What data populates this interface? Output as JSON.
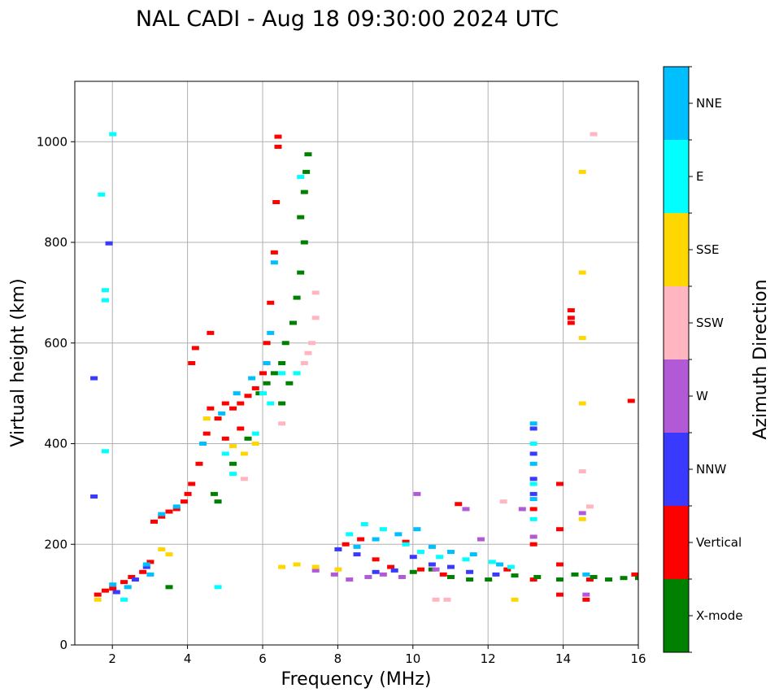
{
  "chart_data": {
    "type": "scatter",
    "title": "NAL CADI - Aug 18 09:30:00 2024 UTC",
    "xlabel": "Frequency (MHz)",
    "ylabel": "Virtual height (km)",
    "xlim": [
      1,
      16
    ],
    "ylim": [
      0,
      1120
    ],
    "x_ticks": [
      "2",
      "4",
      "6",
      "8",
      "10",
      "12",
      "14",
      "16"
    ],
    "x_tick_values": [
      2,
      4,
      6,
      8,
      10,
      12,
      14,
      16
    ],
    "y_ticks": [
      "0",
      "200",
      "400",
      "600",
      "800",
      "1000"
    ],
    "y_tick_values": [
      0,
      200,
      400,
      600,
      800,
      1000
    ],
    "grid": true,
    "colorbar": {
      "label": "Azimuth Direction",
      "categories": [
        {
          "name": "X-mode",
          "color": "#008000"
        },
        {
          "name": "Vertical",
          "color": "#ff0000"
        },
        {
          "name": "NNW",
          "color": "#3a3aff"
        },
        {
          "name": "W",
          "color": "#b25ad6"
        },
        {
          "name": "SSW",
          "color": "#ffb6c1"
        },
        {
          "name": "SSE",
          "color": "#ffd700"
        },
        {
          "name": "E",
          "color": "#00ffff"
        },
        {
          "name": "NNE",
          "color": "#00bfff"
        }
      ]
    },
    "series": [
      {
        "name": "Vertical",
        "points": [
          [
            1.6,
            100
          ],
          [
            1.8,
            108
          ],
          [
            2.0,
            112
          ],
          [
            2.3,
            125
          ],
          [
            2.5,
            135
          ],
          [
            2.8,
            145
          ],
          [
            3.0,
            165
          ],
          [
            3.1,
            245
          ],
          [
            3.3,
            255
          ],
          [
            3.5,
            265
          ],
          [
            3.7,
            270
          ],
          [
            3.9,
            285
          ],
          [
            4.0,
            300
          ],
          [
            4.1,
            320
          ],
          [
            4.3,
            360
          ],
          [
            4.5,
            420
          ],
          [
            4.6,
            470
          ],
          [
            4.8,
            450
          ],
          [
            5.0,
            480
          ],
          [
            5.2,
            470
          ],
          [
            5.4,
            480
          ],
          [
            5.6,
            495
          ],
          [
            5.8,
            510
          ],
          [
            6.0,
            540
          ],
          [
            6.1,
            600
          ],
          [
            6.2,
            680
          ],
          [
            6.3,
            780
          ],
          [
            6.35,
            880
          ],
          [
            6.4,
            1010
          ],
          [
            6.4,
            990
          ],
          [
            4.1,
            560
          ],
          [
            4.2,
            590
          ],
          [
            4.6,
            620
          ],
          [
            5.0,
            410
          ],
          [
            5.4,
            430
          ],
          [
            8.2,
            200
          ],
          [
            8.6,
            210
          ],
          [
            9.0,
            170
          ],
          [
            9.4,
            155
          ],
          [
            9.8,
            205
          ],
          [
            10.2,
            150
          ],
          [
            10.8,
            140
          ],
          [
            11.2,
            280
          ],
          [
            12.5,
            150
          ],
          [
            13.2,
            130
          ],
          [
            13.2,
            200
          ],
          [
            13.2,
            270
          ],
          [
            13.9,
            100
          ],
          [
            13.9,
            160
          ],
          [
            13.9,
            230
          ],
          [
            13.9,
            320
          ],
          [
            14.2,
            650
          ],
          [
            14.2,
            665
          ],
          [
            14.2,
            640
          ],
          [
            15.8,
            485
          ],
          [
            15.9,
            140
          ],
          [
            14.6,
            90
          ],
          [
            14.7,
            130
          ]
        ]
      },
      {
        "name": "X-mode",
        "points": [
          [
            5.9,
            500
          ],
          [
            6.1,
            520
          ],
          [
            6.3,
            540
          ],
          [
            6.5,
            560
          ],
          [
            6.6,
            600
          ],
          [
            6.8,
            640
          ],
          [
            6.9,
            690
          ],
          [
            7.0,
            740
          ],
          [
            7.1,
            800
          ],
          [
            7.0,
            850
          ],
          [
            7.1,
            900
          ],
          [
            7.15,
            940
          ],
          [
            7.2,
            975
          ],
          [
            6.5,
            480
          ],
          [
            6.7,
            520
          ],
          [
            5.6,
            410
          ],
          [
            5.2,
            360
          ],
          [
            4.7,
            300
          ],
          [
            4.8,
            285
          ],
          [
            3.5,
            115
          ],
          [
            10.0,
            145
          ],
          [
            10.5,
            150
          ],
          [
            11.0,
            135
          ],
          [
            11.5,
            130
          ],
          [
            12.0,
            130
          ],
          [
            12.7,
            138
          ],
          [
            13.3,
            135
          ],
          [
            13.9,
            130
          ],
          [
            14.3,
            140
          ],
          [
            14.8,
            135
          ],
          [
            15.2,
            130
          ],
          [
            15.6,
            133
          ],
          [
            16.0,
            133
          ]
        ]
      },
      {
        "name": "NNW",
        "points": [
          [
            1.5,
            530
          ],
          [
            1.5,
            295
          ],
          [
            1.9,
            798
          ],
          [
            2.1,
            105
          ],
          [
            2.6,
            130
          ],
          [
            2.9,
            155
          ],
          [
            8.0,
            190
          ],
          [
            8.5,
            180
          ],
          [
            9.0,
            145
          ],
          [
            9.5,
            148
          ],
          [
            10.0,
            175
          ],
          [
            10.5,
            160
          ],
          [
            11.0,
            155
          ],
          [
            11.5,
            145
          ],
          [
            12.2,
            140
          ],
          [
            13.2,
            430
          ],
          [
            13.2,
            380
          ],
          [
            13.2,
            330
          ],
          [
            13.2,
            300
          ]
        ]
      },
      {
        "name": "W",
        "points": [
          [
            7.4,
            148
          ],
          [
            7.9,
            140
          ],
          [
            8.3,
            130
          ],
          [
            8.8,
            135
          ],
          [
            9.2,
            140
          ],
          [
            9.7,
            135
          ],
          [
            10.1,
            300
          ],
          [
            10.6,
            150
          ],
          [
            11.4,
            270
          ],
          [
            11.8,
            210
          ],
          [
            12.9,
            270
          ],
          [
            13.2,
            215
          ],
          [
            14.5,
            262
          ],
          [
            14.6,
            100
          ]
        ]
      },
      {
        "name": "SSW",
        "points": [
          [
            7.3,
            600
          ],
          [
            7.4,
            650
          ],
          [
            7.4,
            700
          ],
          [
            7.2,
            580
          ],
          [
            7.1,
            560
          ],
          [
            6.5,
            440
          ],
          [
            5.5,
            330
          ],
          [
            10.6,
            90
          ],
          [
            10.9,
            90
          ],
          [
            12.4,
            285
          ],
          [
            14.5,
            345
          ],
          [
            14.7,
            275
          ],
          [
            14.8,
            1015
          ]
        ]
      },
      {
        "name": "SSE",
        "points": [
          [
            1.6,
            90
          ],
          [
            3.3,
            190
          ],
          [
            3.5,
            180
          ],
          [
            4.5,
            450
          ],
          [
            5.2,
            395
          ],
          [
            5.5,
            380
          ],
          [
            5.8,
            400
          ],
          [
            6.5,
            155
          ],
          [
            6.9,
            160
          ],
          [
            7.4,
            155
          ],
          [
            8.0,
            150
          ],
          [
            12.7,
            90
          ],
          [
            14.5,
            940
          ],
          [
            14.5,
            740
          ],
          [
            14.5,
            610
          ],
          [
            14.5,
            480
          ],
          [
            14.5,
            250
          ]
        ]
      },
      {
        "name": "E",
        "points": [
          [
            1.7,
            895
          ],
          [
            1.8,
            705
          ],
          [
            1.8,
            685
          ],
          [
            1.8,
            385
          ],
          [
            2.0,
            1015
          ],
          [
            2.3,
            90
          ],
          [
            4.8,
            115
          ],
          [
            5.0,
            380
          ],
          [
            5.2,
            340
          ],
          [
            5.8,
            420
          ],
          [
            6.0,
            500
          ],
          [
            6.5,
            540
          ],
          [
            6.9,
            540
          ],
          [
            7.0,
            930
          ],
          [
            8.3,
            220
          ],
          [
            8.7,
            240
          ],
          [
            9.2,
            230
          ],
          [
            9.8,
            200
          ],
          [
            10.2,
            185
          ],
          [
            10.7,
            175
          ],
          [
            11.4,
            170
          ],
          [
            12.1,
            165
          ],
          [
            12.6,
            155
          ],
          [
            13.2,
            250
          ],
          [
            13.2,
            320
          ],
          [
            13.2,
            400
          ],
          [
            6.2,
            480
          ]
        ]
      },
      {
        "name": "NNE",
        "points": [
          [
            2.0,
            120
          ],
          [
            2.4,
            115
          ],
          [
            2.9,
            160
          ],
          [
            3.0,
            140
          ],
          [
            3.3,
            260
          ],
          [
            3.7,
            275
          ],
          [
            4.4,
            400
          ],
          [
            4.9,
            460
          ],
          [
            5.3,
            500
          ],
          [
            5.7,
            530
          ],
          [
            6.1,
            560
          ],
          [
            6.2,
            620
          ],
          [
            6.3,
            760
          ],
          [
            8.5,
            195
          ],
          [
            9.0,
            210
          ],
          [
            9.6,
            220
          ],
          [
            10.1,
            230
          ],
          [
            10.5,
            195
          ],
          [
            11.0,
            185
          ],
          [
            11.6,
            180
          ],
          [
            12.3,
            160
          ],
          [
            13.2,
            440
          ],
          [
            13.2,
            360
          ],
          [
            13.2,
            290
          ],
          [
            14.6,
            140
          ]
        ]
      }
    ]
  }
}
